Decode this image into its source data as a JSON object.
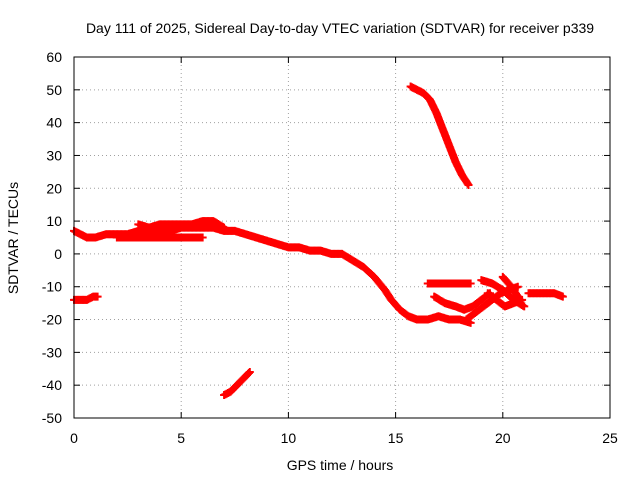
{
  "chart_data": {
    "type": "scatter",
    "title": "Day 111 of 2025, Sidereal Day-to-day VTEC variation (SDTVAR) for receiver p339",
    "xlabel": "GPS time / hours",
    "ylabel": "SDTVAR / TECUs",
    "xlim": [
      0,
      25
    ],
    "ylim": [
      -50,
      60
    ],
    "x_ticks": [
      0,
      5,
      10,
      15,
      20,
      25
    ],
    "y_ticks": [
      -50,
      -40,
      -30,
      -20,
      -10,
      0,
      10,
      20,
      30,
      40,
      50,
      60
    ],
    "grid": true,
    "marker": "+",
    "color": "#ff0000",
    "series": [
      {
        "name": "main-trace",
        "x": [
          0.0,
          0.3,
          0.6,
          1.0,
          1.5,
          2.0,
          2.5,
          3.0,
          3.5,
          4.0,
          4.5,
          5.0,
          5.5,
          6.0,
          6.5,
          7.0,
          7.5,
          8.0,
          8.5,
          9.0,
          9.5,
          10.0,
          10.5,
          11.0,
          11.5,
          12.0,
          12.5,
          13.0,
          13.5,
          14.0,
          14.5,
          14.8,
          15.2,
          15.6,
          16.0,
          16.5,
          17.0,
          17.5,
          18.0,
          18.5
        ],
        "y": [
          7,
          6,
          5,
          5,
          6,
          6,
          6,
          7,
          7,
          7,
          7,
          8,
          8,
          8,
          8,
          7,
          7,
          6,
          5,
          4,
          3,
          2,
          2,
          1,
          1,
          0,
          0,
          -2,
          -4,
          -7,
          -11,
          -14,
          -17,
          -19,
          -20,
          -20,
          -19,
          -20,
          -20,
          -21
        ]
      },
      {
        "name": "upper-band",
        "x": [
          3.0,
          3.5,
          4.0,
          4.5,
          5.0,
          5.5,
          6.0,
          6.5,
          7.0
        ],
        "y": [
          9,
          8,
          9,
          9,
          9,
          9,
          10,
          10,
          8
        ]
      },
      {
        "name": "lower-band",
        "x": [
          2.0,
          3.0,
          4.0,
          5.0,
          6.0
        ],
        "y": [
          5,
          5,
          5,
          5,
          5
        ]
      },
      {
        "name": "early-negative",
        "x": [
          0.0,
          0.3,
          0.6,
          0.9,
          1.1
        ],
        "y": [
          -14,
          -14,
          -14,
          -13,
          -13
        ]
      },
      {
        "name": "mid-negative",
        "x": [
          7.0,
          7.3,
          7.6,
          7.9,
          8.2
        ],
        "y": [
          -43,
          -42,
          -40,
          -38,
          -36
        ]
      },
      {
        "name": "high-descent",
        "x": [
          15.7,
          16.0,
          16.3,
          16.6,
          16.9,
          17.2,
          17.5,
          17.8,
          18.1,
          18.4
        ],
        "y": [
          51,
          50,
          49,
          47,
          43,
          38,
          33,
          28,
          24,
          21
        ]
      },
      {
        "name": "segment-a",
        "x": [
          16.5,
          17.0,
          17.5,
          18.0,
          18.5
        ],
        "y": [
          -9,
          -9,
          -9,
          -9,
          -9
        ]
      },
      {
        "name": "segment-b",
        "x": [
          16.8,
          17.3,
          17.8,
          18.2,
          18.6,
          19.0,
          19.4
        ],
        "y": [
          -13,
          -15,
          -16,
          -17,
          -16,
          -14,
          -12
        ]
      },
      {
        "name": "segment-c",
        "x": [
          18.3,
          18.7,
          19.1,
          19.5,
          19.9,
          20.3,
          20.7
        ],
        "y": [
          -20,
          -18,
          -16,
          -14,
          -12,
          -11,
          -10
        ]
      },
      {
        "name": "segment-d",
        "x": [
          19.0,
          19.5,
          20.0,
          20.5,
          21.0
        ],
        "y": [
          -8,
          -9,
          -11,
          -14,
          -16
        ]
      },
      {
        "name": "segment-e",
        "x": [
          19.3,
          19.7,
          20.1,
          20.5,
          20.9
        ],
        "y": [
          -12,
          -14,
          -16,
          -15,
          -14
        ]
      },
      {
        "name": "segment-f",
        "x": [
          20.0,
          20.4,
          20.8
        ],
        "y": [
          -7,
          -10,
          -14
        ]
      },
      {
        "name": "segment-g",
        "x": [
          21.2,
          21.6,
          22.0,
          22.4,
          22.8
        ],
        "y": [
          -12,
          -12,
          -12,
          -12,
          -13
        ]
      }
    ]
  }
}
